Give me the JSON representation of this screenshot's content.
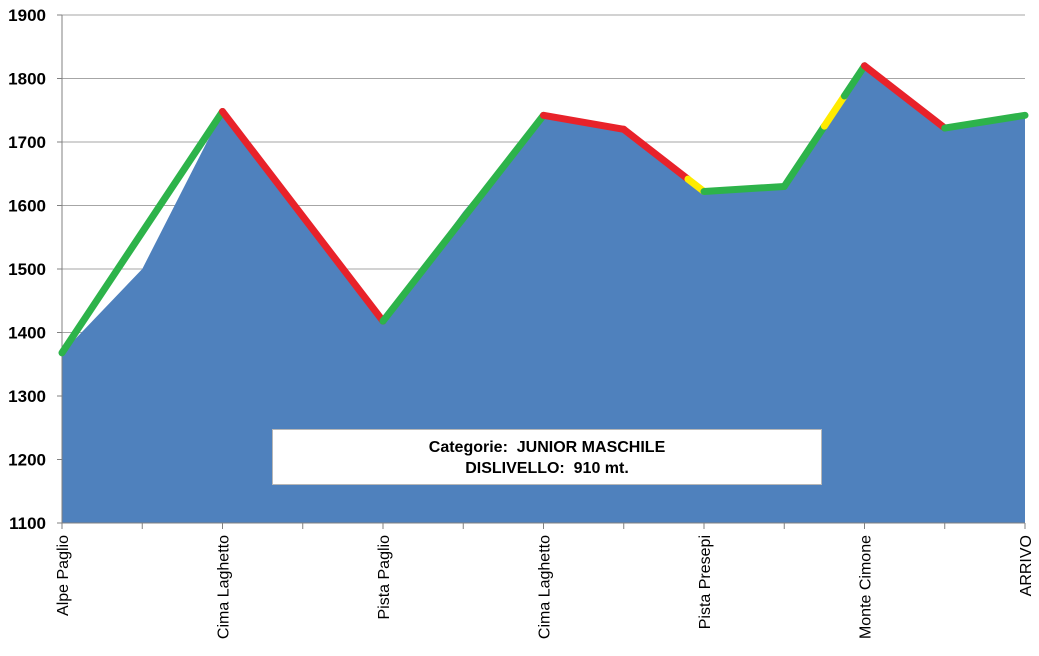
{
  "chart_data": {
    "type": "area",
    "x_labels": [
      "Alpe Paglio",
      "",
      "Cima Laghetto",
      "",
      "Pista Paglio",
      "",
      "Cima Laghetto",
      "",
      "Pista Presepi",
      "",
      "Monte Cimone",
      "",
      "ARRIVO"
    ],
    "values": [
      1368,
      1500,
      1748,
      1580,
      1418,
      1590,
      1742,
      1720,
      1622,
      1630,
      1820,
      1722,
      1742
    ],
    "ylim": [
      1100,
      1900
    ],
    "y_ticks": [
      1100,
      1200,
      1300,
      1400,
      1500,
      1600,
      1700,
      1800,
      1900
    ],
    "grid": true,
    "fill_color": "#4f81bd",
    "segments": [
      {
        "from": 0,
        "to": 2,
        "color": "#2db34a"
      },
      {
        "from": 2,
        "to": 4,
        "color": "#e8222a"
      },
      {
        "from": 4,
        "to": 6,
        "color": "#2db34a"
      },
      {
        "from": 6,
        "to": 7,
        "color": "#e8222a"
      },
      {
        "from": 7,
        "to": 7.8,
        "color": "#e8222a"
      },
      {
        "from": 7.8,
        "to": 8,
        "color": "#ffeb00"
      },
      {
        "from": 8,
        "to": 9,
        "color": "#2db34a"
      },
      {
        "from": 9,
        "to": 9.5,
        "color": "#2db34a"
      },
      {
        "from": 9.5,
        "to": 9.75,
        "color": "#ffeb00"
      },
      {
        "from": 9.75,
        "to": 10,
        "color": "#2db34a"
      },
      {
        "from": 10,
        "to": 11,
        "color": "#e8222a"
      },
      {
        "from": 11,
        "to": 12,
        "color": "#2db34a"
      }
    ],
    "annotation": {
      "line1": "Categorie:  JUNIOR MASCHILE",
      "line2": "DISLIVELLO:  910 mt."
    }
  }
}
